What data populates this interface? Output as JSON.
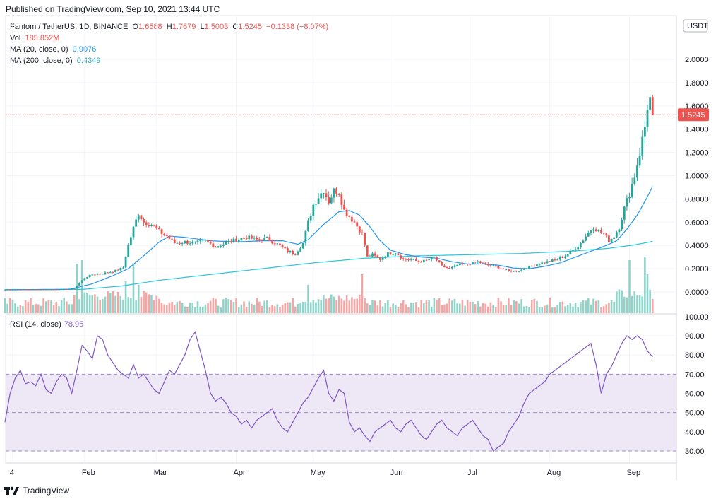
{
  "header": {
    "published": "Published on TradingView.com, Sep 10, 2021 13:44 UTC"
  },
  "legend": {
    "symbol": "Fantom / TetherUS, 1D, BINANCE",
    "o_label": "O",
    "o": "1.6588",
    "h_label": "H",
    "h": "1.7679",
    "l_label": "L",
    "l": "1.5003",
    "c_label": "C",
    "c": "1.5245",
    "change": "−0.1338 (−8.07%)",
    "vol_label": "Vol",
    "vol": "185.852M",
    "ma20_label": "MA (20, close, 0)",
    "ma20": "0.9076",
    "ma200_label": "MA (200, close, 0)",
    "ma200": "0.4349"
  },
  "rsi_legend": {
    "label": "RSI (14, close)",
    "value": "78.95"
  },
  "footer": {
    "brand": "TradingView"
  },
  "colors": {
    "up": "#26a69a",
    "down": "#ef5350",
    "up_vol": "#8fd3c9",
    "down_vol": "#f4a6a4",
    "ma20": "#2196f3",
    "ma200": "#26c6da",
    "rsi": "#7e57c2",
    "rsi_band": "#ede7f6",
    "grid": "#f0f3fa",
    "price_line": "#ef5350"
  },
  "chart_data": [
    {
      "type": "candlestick",
      "title": "Fantom / TetherUS, 1D, BINANCE",
      "currency_label": "USDT",
      "last_price_label": "1.5245",
      "last_price": 1.5245,
      "y_ticks": [
        "2.0000",
        "1.8000",
        "1.6000",
        "1.4000",
        "1.2000",
        "1.0000",
        "0.8000",
        "0.6000",
        "0.4000",
        "0.2000",
        "0.0000"
      ],
      "ylim": [
        -0.08,
        2.05
      ],
      "x_ticks": [
        "4",
        "Feb",
        "Mar",
        "Apr",
        "May",
        "Jun",
        "Jul",
        "Aug",
        "Sep"
      ],
      "x_tick_days": [
        3,
        31,
        59,
        90,
        120,
        151,
        181,
        212,
        243
      ],
      "anchors": [
        [
          0,
          0.02
        ],
        [
          10,
          0.021
        ],
        [
          20,
          0.022
        ],
        [
          27,
          0.03
        ],
        [
          29,
          0.08
        ],
        [
          31,
          0.12
        ],
        [
          34,
          0.15
        ],
        [
          38,
          0.16
        ],
        [
          42,
          0.175
        ],
        [
          46,
          0.21
        ],
        [
          48,
          0.4
        ],
        [
          50,
          0.55
        ],
        [
          52,
          0.68
        ],
        [
          54,
          0.6
        ],
        [
          57,
          0.58
        ],
        [
          60,
          0.52
        ],
        [
          63,
          0.48
        ],
        [
          66,
          0.42
        ],
        [
          70,
          0.43
        ],
        [
          74,
          0.42
        ],
        [
          78,
          0.44
        ],
        [
          82,
          0.39
        ],
        [
          86,
          0.42
        ],
        [
          90,
          0.45
        ],
        [
          94,
          0.47
        ],
        [
          98,
          0.45
        ],
        [
          102,
          0.46
        ],
        [
          106,
          0.41
        ],
        [
          110,
          0.35
        ],
        [
          113,
          0.33
        ],
        [
          116,
          0.42
        ],
        [
          118,
          0.6
        ],
        [
          120,
          0.75
        ],
        [
          122,
          0.82
        ],
        [
          124,
          0.88
        ],
        [
          126,
          0.78
        ],
        [
          128,
          0.87
        ],
        [
          130,
          0.86
        ],
        [
          132,
          0.7
        ],
        [
          134,
          0.65
        ],
        [
          136,
          0.6
        ],
        [
          139,
          0.5
        ],
        [
          141,
          0.3
        ],
        [
          143,
          0.32
        ],
        [
          146,
          0.28
        ],
        [
          149,
          0.33
        ],
        [
          152,
          0.34
        ],
        [
          155,
          0.28
        ],
        [
          158,
          0.28
        ],
        [
          161,
          0.26
        ],
        [
          164,
          0.27
        ],
        [
          167,
          0.3
        ],
        [
          170,
          0.22
        ],
        [
          173,
          0.2
        ],
        [
          176,
          0.23
        ],
        [
          180,
          0.24
        ],
        [
          184,
          0.26
        ],
        [
          188,
          0.23
        ],
        [
          192,
          0.21
        ],
        [
          196,
          0.18
        ],
        [
          200,
          0.18
        ],
        [
          203,
          0.21
        ],
        [
          207,
          0.24
        ],
        [
          211,
          0.26
        ],
        [
          215,
          0.28
        ],
        [
          218,
          0.31
        ],
        [
          221,
          0.36
        ],
        [
          224,
          0.42
        ],
        [
          227,
          0.51
        ],
        [
          229,
          0.56
        ],
        [
          231,
          0.52
        ],
        [
          233,
          0.5
        ],
        [
          235,
          0.44
        ],
        [
          237,
          0.48
        ],
        [
          239,
          0.56
        ],
        [
          241,
          0.72
        ],
        [
          243,
          0.85
        ],
        [
          245,
          1.0
        ],
        [
          247,
          1.2
        ],
        [
          249,
          1.42
        ],
        [
          250,
          1.6
        ],
        [
          251,
          1.66
        ],
        [
          252,
          1.525
        ]
      ],
      "ma20_anchors": [
        [
          0,
          0.02
        ],
        [
          25,
          0.022
        ],
        [
          34,
          0.07
        ],
        [
          42,
          0.14
        ],
        [
          48,
          0.2
        ],
        [
          55,
          0.33
        ],
        [
          60,
          0.43
        ],
        [
          64,
          0.48
        ],
        [
          70,
          0.47
        ],
        [
          80,
          0.44
        ],
        [
          90,
          0.43
        ],
        [
          100,
          0.44
        ],
        [
          108,
          0.44
        ],
        [
          114,
          0.41
        ],
        [
          118,
          0.45
        ],
        [
          124,
          0.58
        ],
        [
          130,
          0.69
        ],
        [
          134,
          0.7
        ],
        [
          138,
          0.66
        ],
        [
          142,
          0.56
        ],
        [
          146,
          0.44
        ],
        [
          150,
          0.36
        ],
        [
          156,
          0.32
        ],
        [
          162,
          0.3
        ],
        [
          168,
          0.29
        ],
        [
          174,
          0.26
        ],
        [
          180,
          0.24
        ],
        [
          186,
          0.24
        ],
        [
          192,
          0.23
        ],
        [
          198,
          0.205
        ],
        [
          204,
          0.2
        ],
        [
          210,
          0.22
        ],
        [
          216,
          0.25
        ],
        [
          222,
          0.3
        ],
        [
          228,
          0.35
        ],
        [
          234,
          0.4
        ],
        [
          238,
          0.44
        ],
        [
          242,
          0.54
        ],
        [
          246,
          0.66
        ],
        [
          250,
          0.82
        ],
        [
          252,
          0.9076
        ]
      ],
      "ma200_anchors": [
        [
          0,
          0.02
        ],
        [
          30,
          0.022
        ],
        [
          45,
          0.05
        ],
        [
          60,
          0.1
        ],
        [
          80,
          0.15
        ],
        [
          100,
          0.2
        ],
        [
          120,
          0.25
        ],
        [
          140,
          0.29
        ],
        [
          160,
          0.31
        ],
        [
          180,
          0.32
        ],
        [
          200,
          0.33
        ],
        [
          220,
          0.35
        ],
        [
          235,
          0.375
        ],
        [
          245,
          0.405
        ],
        [
          252,
          0.4349
        ]
      ],
      "volume_spikes": [
        [
          28,
          0.7
        ],
        [
          30,
          0.75
        ],
        [
          47,
          0.45
        ],
        [
          50,
          0.7
        ],
        [
          52,
          0.4
        ],
        [
          118,
          0.4
        ],
        [
          139,
          0.55
        ],
        [
          243,
          0.75
        ],
        [
          249,
          0.8
        ],
        [
          250,
          0.55
        ]
      ]
    },
    {
      "type": "line",
      "title": "RSI (14, close)",
      "y_ticks": [
        "100.00",
        "90.00",
        "80.00",
        "70.00",
        "60.00",
        "50.00",
        "40.00",
        "30.00"
      ],
      "ylim": [
        25,
        100
      ],
      "bands": [
        30,
        50,
        70
      ],
      "x": [
        0,
        2,
        4,
        6,
        8,
        10,
        12,
        14,
        16,
        18,
        20,
        22,
        24,
        26,
        28,
        30,
        32,
        34,
        36,
        38,
        40,
        42,
        44,
        46,
        48,
        50,
        52,
        54,
        56,
        58,
        60,
        62,
        64,
        66,
        68,
        70,
        72,
        74,
        76,
        78,
        80,
        82,
        84,
        86,
        88,
        90,
        92,
        94,
        96,
        98,
        100,
        102,
        104,
        106,
        108,
        110,
        112,
        114,
        116,
        118,
        120,
        122,
        124,
        126,
        128,
        130,
        132,
        134,
        136,
        138,
        140,
        142,
        144,
        146,
        148,
        150,
        152,
        154,
        156,
        158,
        160,
        162,
        164,
        166,
        168,
        170,
        172,
        174,
        176,
        178,
        180,
        182,
        184,
        186,
        188,
        190,
        192,
        194,
        196,
        198,
        200,
        202,
        204,
        206,
        208,
        210,
        212,
        214,
        216,
        218,
        220,
        222,
        224,
        226,
        228,
        230,
        232,
        234,
        236,
        238,
        240,
        242,
        244,
        246,
        248,
        250,
        252
      ],
      "values": [
        45,
        60,
        68,
        72,
        65,
        66,
        64,
        70,
        62,
        60,
        66,
        70,
        68,
        60,
        72,
        85,
        82,
        78,
        90,
        88,
        80,
        76,
        72,
        70,
        68,
        75,
        68,
        70,
        66,
        62,
        60,
        66,
        72,
        70,
        75,
        80,
        88,
        92,
        82,
        72,
        60,
        56,
        58,
        55,
        50,
        48,
        44,
        46,
        42,
        46,
        48,
        50,
        52,
        46,
        42,
        40,
        45,
        50,
        55,
        58,
        63,
        68,
        72,
        60,
        56,
        62,
        60,
        45,
        40,
        42,
        38,
        35,
        40,
        42,
        44,
        46,
        42,
        40,
        44,
        46,
        42,
        38,
        36,
        40,
        44,
        46,
        42,
        40,
        38,
        42,
        44,
        46,
        42,
        38,
        36,
        30,
        32,
        34,
        40,
        44,
        48,
        55,
        60,
        62,
        64,
        66,
        70,
        72,
        74,
        76,
        78,
        80,
        82,
        84,
        86,
        75,
        60,
        70,
        74,
        80,
        86,
        90,
        88,
        90,
        88,
        82,
        79
      ]
    }
  ]
}
